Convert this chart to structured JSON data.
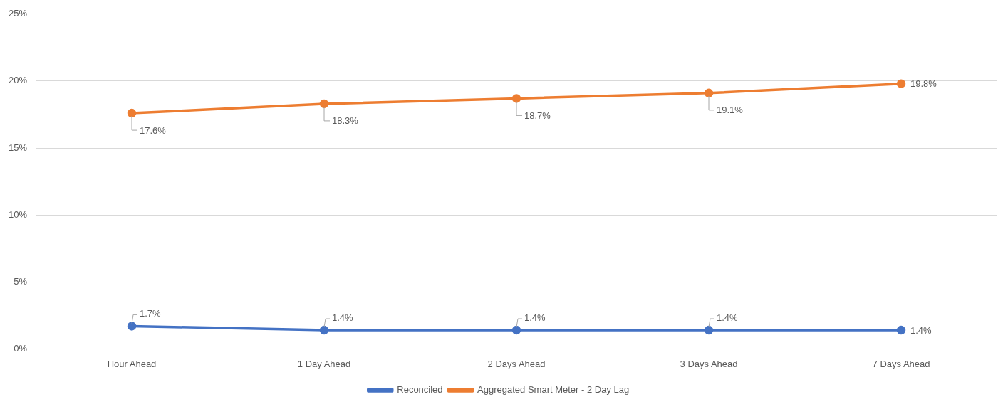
{
  "chart_data": {
    "type": "line",
    "categories": [
      "Hour Ahead",
      "1 Day Ahead",
      "2 Days Ahead",
      "3 Days Ahead",
      "7 Days Ahead"
    ],
    "series": [
      {
        "name": "Reconciled",
        "color": "#4472c4",
        "values": [
          1.7,
          1.4,
          1.4,
          1.4,
          1.4
        ],
        "value_labels": [
          "1.7%",
          "1.4%",
          "1.4%",
          "1.4%",
          "1.4%"
        ]
      },
      {
        "name": "Aggregated Smart Meter - 2 Day Lag",
        "color": "#ed7d31",
        "values": [
          17.6,
          18.3,
          18.7,
          19.1,
          19.8
        ],
        "value_labels": [
          "17.6%",
          "18.3%",
          "18.7%",
          "19.1%",
          "19.8%"
        ]
      }
    ],
    "ylim": [
      0,
      25
    ],
    "yticks": [
      {
        "value": 0,
        "label": "0%"
      },
      {
        "value": 5,
        "label": "5%"
      },
      {
        "value": 10,
        "label": "10%"
      },
      {
        "value": 15,
        "label": "15%"
      },
      {
        "value": 20,
        "label": "20%"
      },
      {
        "value": 25,
        "label": "25%"
      }
    ],
    "grid": "y",
    "legend": "bottom",
    "marker": "circle",
    "line_style": "solid"
  }
}
